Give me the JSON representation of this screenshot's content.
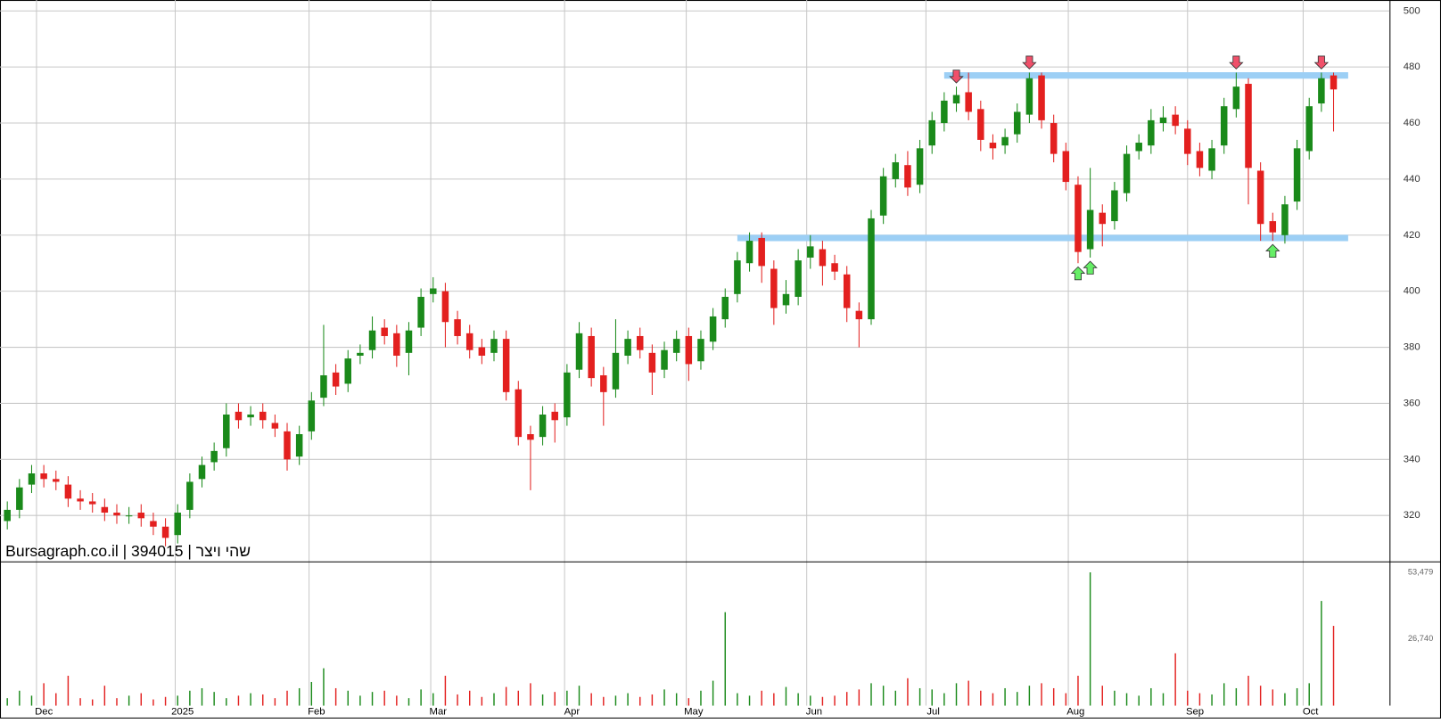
{
  "chart_data": {
    "type": "candlestick",
    "title": "Bursagraph.co.il | 394015 | רציו יהש",
    "open": [
      318,
      322,
      331,
      335,
      333,
      331,
      326,
      325,
      323,
      321,
      320,
      321,
      318,
      316,
      313,
      322,
      333,
      339,
      344,
      357,
      355,
      357,
      353,
      350,
      341,
      350,
      362,
      371,
      367,
      377,
      379,
      387,
      385,
      378,
      387,
      399,
      400,
      390,
      385,
      380,
      378,
      383,
      365,
      349,
      348,
      357,
      355,
      372,
      384,
      370,
      365,
      377,
      384,
      378,
      372,
      378,
      384,
      375,
      382,
      390,
      399,
      410,
      419,
      408,
      395,
      398,
      412,
      415,
      410,
      406,
      393,
      390,
      427,
      440,
      445,
      438,
      452,
      460,
      467,
      471,
      465,
      453,
      452,
      456,
      463,
      477,
      460,
      450,
      438,
      415,
      428,
      425,
      435,
      450,
      452,
      460,
      463,
      458,
      450,
      443,
      452,
      465,
      474,
      443,
      425,
      420,
      432,
      450,
      467,
      477
    ],
    "high": [
      325,
      333,
      338,
      338,
      336,
      334,
      329,
      328,
      326,
      324,
      323,
      324,
      321,
      319,
      324,
      335,
      341,
      346,
      360,
      360,
      359,
      360,
      356,
      353,
      352,
      364,
      388,
      374,
      379,
      381,
      391,
      390,
      388,
      389,
      401,
      405,
      403,
      393,
      388,
      383,
      386,
      386,
      368,
      352,
      359,
      360,
      374,
      389,
      387,
      373,
      390,
      386,
      387,
      381,
      382,
      386,
      387,
      386,
      394,
      401,
      414,
      421,
      421,
      411,
      404,
      415,
      420,
      418,
      413,
      409,
      396,
      429,
      444,
      449,
      450,
      454,
      464,
      471,
      473,
      478,
      468,
      456,
      458,
      467,
      478,
      478,
      463,
      453,
      441,
      444,
      431,
      439,
      452,
      456,
      465,
      466,
      466,
      461,
      453,
      454,
      469,
      478,
      476,
      446,
      428,
      434,
      454,
      469,
      478,
      478
    ],
    "low": [
      315,
      319,
      328,
      330,
      329,
      323,
      322,
      321,
      318,
      317,
      317,
      316,
      313,
      309,
      310,
      319,
      330,
      336,
      341,
      351,
      352,
      351,
      348,
      336,
      338,
      347,
      359,
      363,
      364,
      374,
      376,
      381,
      373,
      370,
      384,
      396,
      380,
      381,
      376,
      374,
      375,
      361,
      345,
      329,
      345,
      346,
      352,
      369,
      366,
      352,
      362,
      374,
      376,
      363,
      369,
      375,
      368,
      372,
      379,
      387,
      396,
      407,
      403,
      388,
      392,
      395,
      408,
      402,
      404,
      389,
      380,
      388,
      424,
      437,
      434,
      435,
      449,
      457,
      464,
      461,
      450,
      447,
      449,
      453,
      460,
      458,
      446,
      436,
      410,
      412,
      416,
      422,
      432,
      447,
      449,
      457,
      456,
      445,
      441,
      440,
      449,
      462,
      431,
      418,
      418,
      417,
      429,
      447,
      464,
      457
    ],
    "close": [
      322,
      330,
      335,
      333,
      332,
      326,
      325,
      324,
      321,
      320,
      320,
      319,
      316,
      312,
      321,
      332,
      338,
      343,
      356,
      354,
      356,
      354,
      351,
      340,
      349,
      361,
      370,
      366,
      376,
      378,
      386,
      384,
      377,
      386,
      398,
      401,
      389,
      384,
      379,
      377,
      383,
      364,
      348,
      347,
      356,
      354,
      371,
      385,
      369,
      364,
      378,
      383,
      379,
      371,
      379,
      383,
      374,
      383,
      391,
      398,
      411,
      418,
      409,
      394,
      399,
      411,
      416,
      409,
      407,
      394,
      390,
      426,
      441,
      446,
      437,
      451,
      461,
      468,
      470,
      464,
      454,
      451,
      455,
      464,
      476,
      461,
      449,
      439,
      414,
      429,
      424,
      436,
      449,
      453,
      461,
      462,
      459,
      449,
      444,
      451,
      466,
      473,
      444,
      424,
      421,
      431,
      451,
      466,
      476,
      472
    ],
    "volume": [
      3000,
      6000,
      4000,
      9000,
      5000,
      12000,
      3000,
      2500,
      8000,
      3000,
      4000,
      5000,
      2500,
      3500,
      4000,
      6000,
      7000,
      5500,
      3000,
      4000,
      5000,
      4500,
      3000,
      6000,
      7000,
      9500,
      15000,
      7000,
      6000,
      4000,
      5500,
      6000,
      4000,
      3000,
      6500,
      5000,
      12000,
      4500,
      6000,
      3500,
      5000,
      7500,
      6000,
      9000,
      4500,
      5500,
      6000,
      8000,
      5000,
      3500,
      4000,
      5000,
      3500,
      4500,
      6500,
      5000,
      3000,
      6000,
      10000,
      37500,
      5000,
      4000,
      6000,
      5000,
      7500,
      5000,
      4000,
      3500,
      4000,
      5500,
      6500,
      9000,
      8000,
      6000,
      11000,
      7000,
      6500,
      5000,
      9000,
      10000,
      6000,
      5000,
      7000,
      5500,
      8000,
      9000,
      7000,
      5000,
      12000,
      53479,
      8000,
      6000,
      5000,
      4000,
      7000,
      5000,
      21000,
      6000,
      5000,
      4500,
      9000,
      7000,
      12000,
      8000,
      6500,
      5000,
      7000,
      9000,
      42000,
      32000
    ],
    "colors": {
      "up": "#1a8a1a",
      "down": "#e3201f",
      "band": "#9ccff5",
      "grid": "#c8c8c8"
    },
    "xlim": [
      -0.6,
      113.6
    ],
    "xticks": [
      {
        "value": 2.4,
        "label": "Dec"
      },
      {
        "value": 13.8,
        "label": "2025"
      },
      {
        "value": 24.8,
        "label": "Feb"
      },
      {
        "value": 34.8,
        "label": "Mar"
      },
      {
        "value": 45.8,
        "label": "Apr"
      },
      {
        "value": 55.8,
        "label": "May"
      },
      {
        "value": 65.7,
        "label": "Jun"
      },
      {
        "value": 75.5,
        "label": "Jul"
      },
      {
        "value": 87.2,
        "label": "Aug"
      },
      {
        "value": 97,
        "label": "Sep"
      },
      {
        "value": 106.5,
        "label": "Oct"
      }
    ],
    "ylim": [
      303.6,
      503.9
    ],
    "yticks": [
      320,
      340,
      360,
      380,
      400,
      420,
      440,
      460,
      480,
      500
    ],
    "y2lim": [
      0,
      57500
    ],
    "y2ticks": [
      {
        "value": 26740,
        "label": "26,740"
      },
      {
        "value": 53479,
        "label": "53,479"
      }
    ],
    "grid": true,
    "bands": [
      {
        "value": 477,
        "x": [
          77,
          110.2
        ]
      },
      {
        "value": 419,
        "x": [
          60,
          110.2
        ]
      }
    ],
    "sell_signals": [
      78,
      84,
      101,
      108
    ],
    "buy_signals": [
      88,
      89,
      104
    ]
  }
}
